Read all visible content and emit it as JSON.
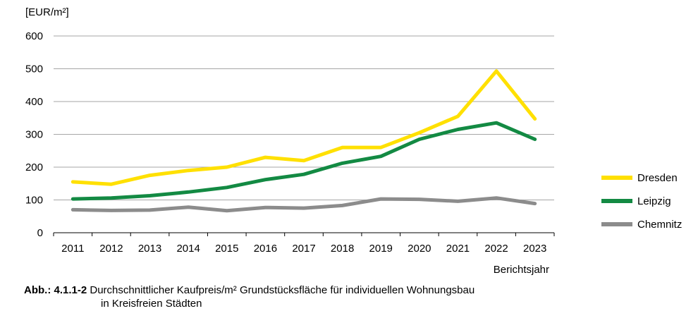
{
  "chart_data": {
    "type": "line",
    "ylabel": "[EUR/m²]",
    "xlabel": "Berichtsjahr",
    "ylim": [
      0,
      600
    ],
    "yticks": [
      0,
      100,
      200,
      300,
      400,
      500,
      600
    ],
    "grid": true,
    "legend_position": "right",
    "x": [
      "2011",
      "2012",
      "2013",
      "2014",
      "2015",
      "2016",
      "2017",
      "2018",
      "2019",
      "2020",
      "2021",
      "2022",
      "2023"
    ],
    "series": [
      {
        "name": "Dresden",
        "color": "#FFE000",
        "values": [
          155,
          148,
          175,
          190,
          200,
          230,
          220,
          260,
          260,
          305,
          355,
          493,
          347
        ]
      },
      {
        "name": "Leipzig",
        "color": "#138A43",
        "values": [
          103,
          106,
          113,
          124,
          138,
          162,
          178,
          212,
          233,
          285,
          315,
          335,
          285
        ]
      },
      {
        "name": "Chemnitz",
        "color": "#8C8C8C",
        "values": [
          70,
          68,
          69,
          78,
          67,
          77,
          75,
          83,
          103,
          102,
          96,
          106,
          89
        ]
      }
    ]
  },
  "caption": {
    "prefix": "Abb.:",
    "number": "4.1.1-2",
    "line1": "Durchschnittlicher Kaufpreis/m² Grundstücksfläche für individuellen Wohnungsbau",
    "line2": "in Kreisfreien Städten"
  }
}
